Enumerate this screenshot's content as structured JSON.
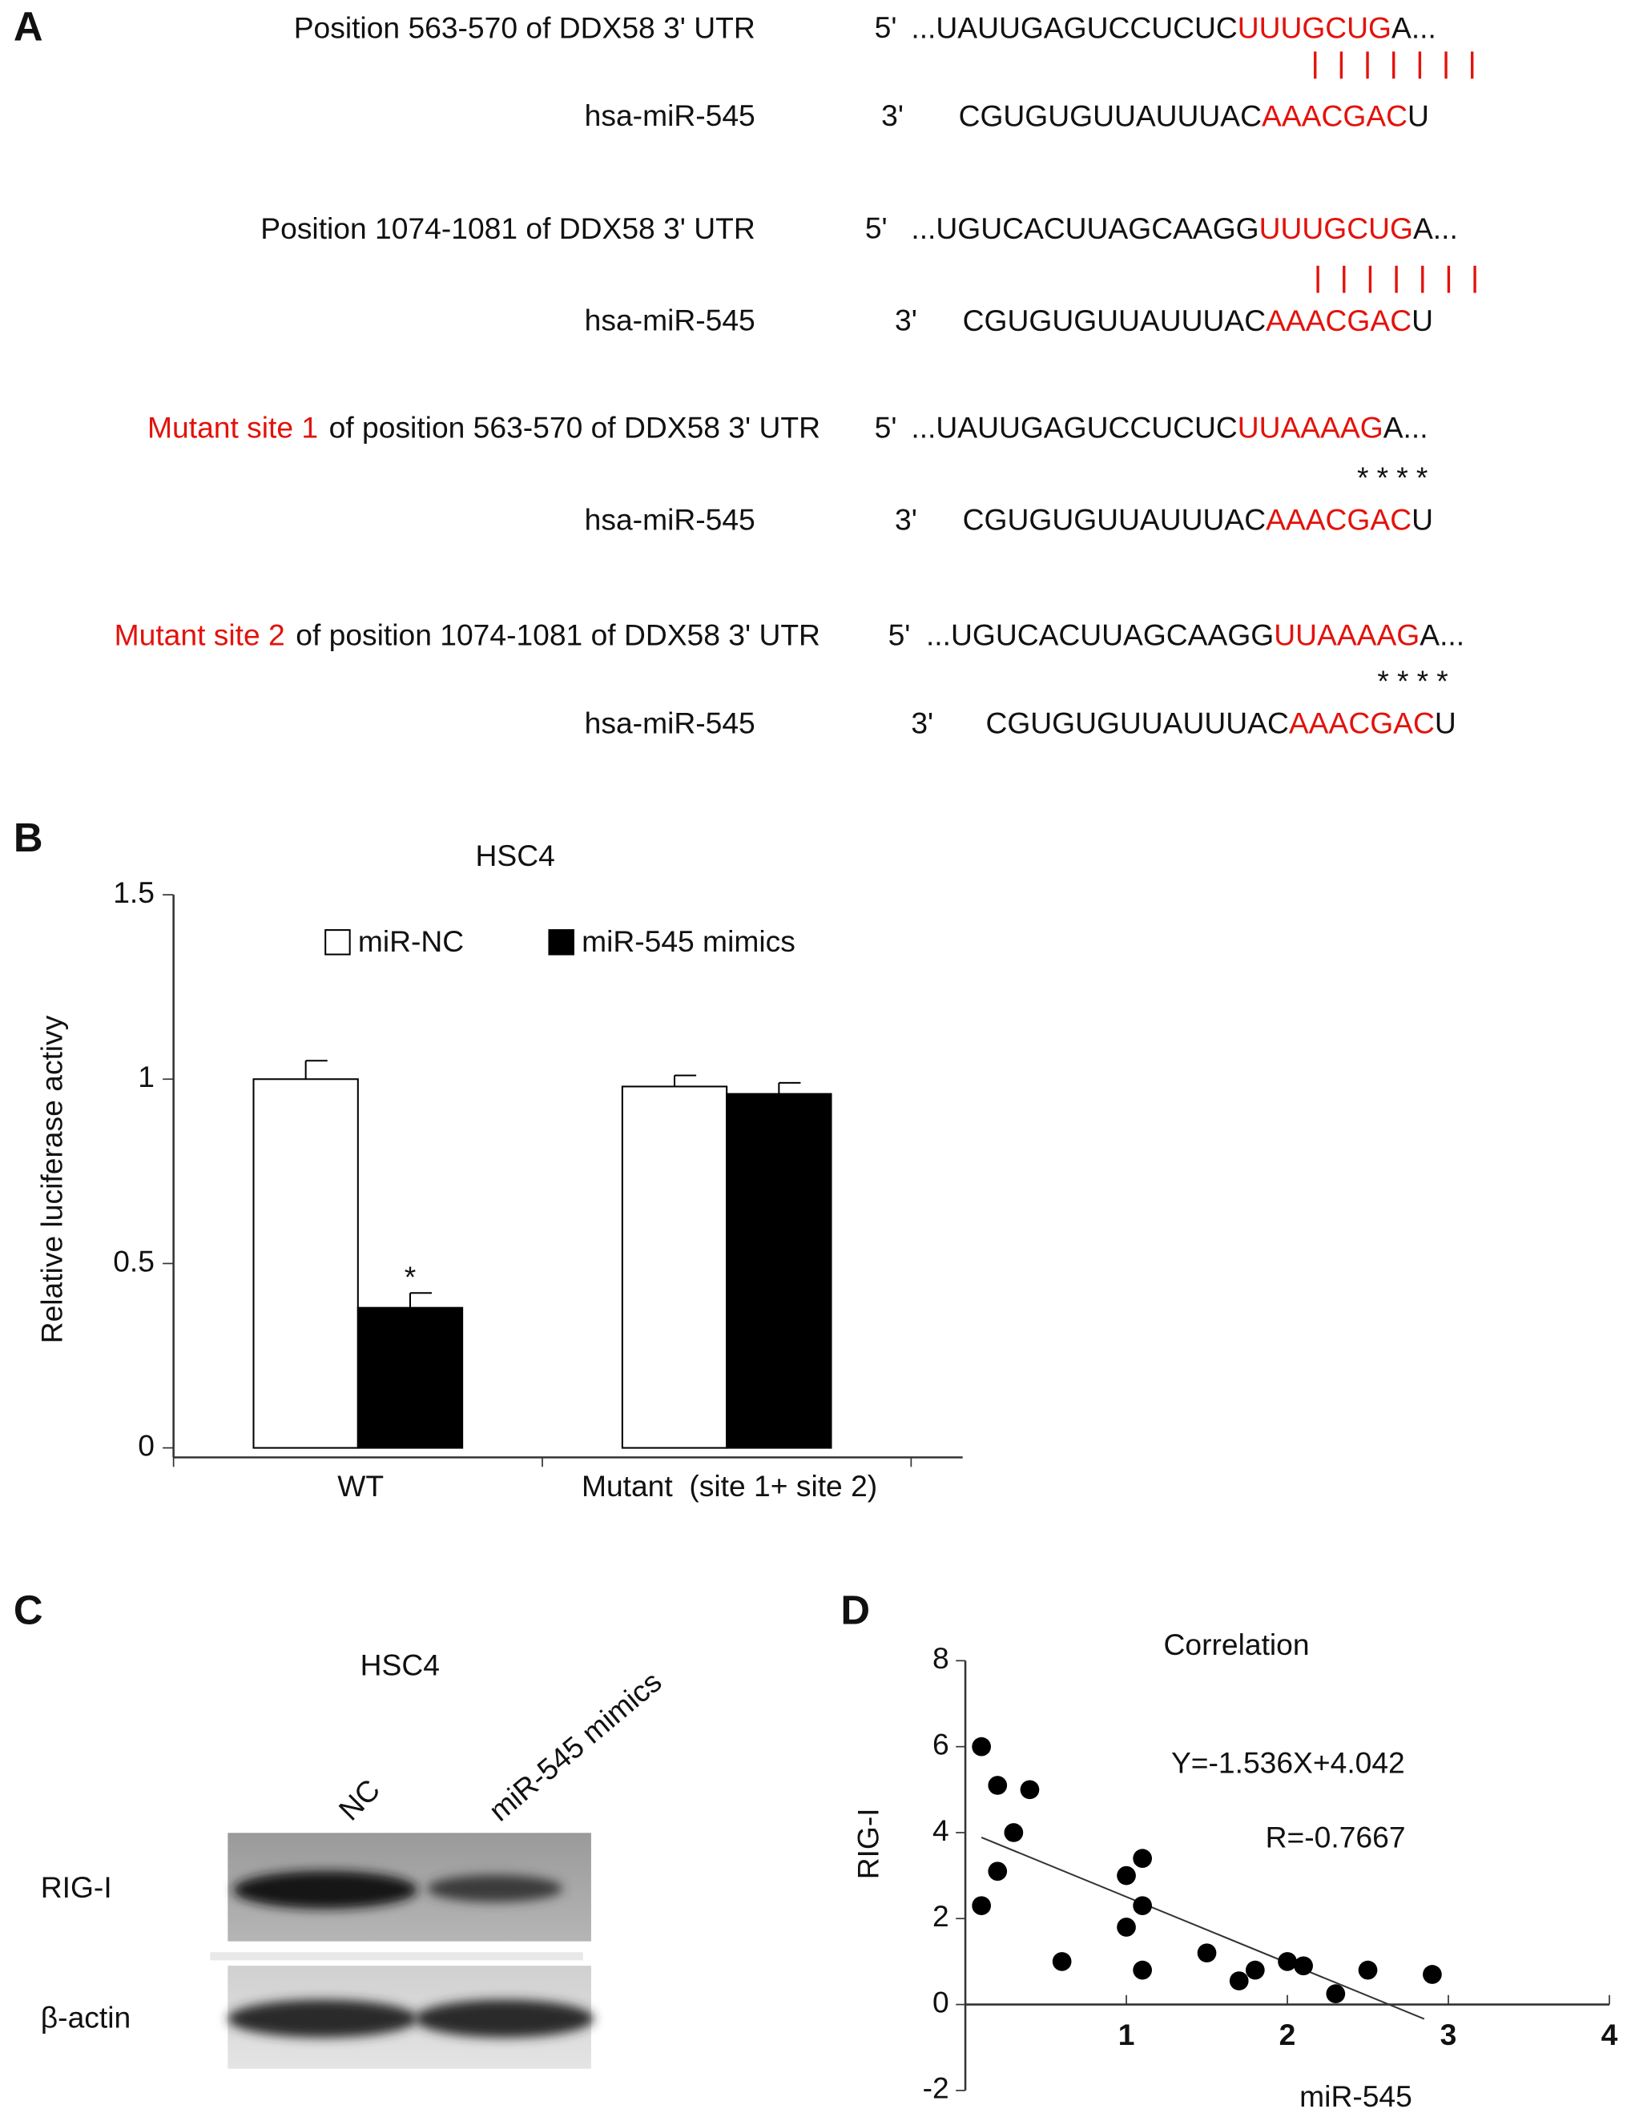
{
  "panel_a": {
    "label": "A",
    "alignments": [
      {
        "site_label": "Position 563-570 of DDX58 3' UTR",
        "utr_prime": "5'",
        "utr_seq": "...UAUUGAGUCCUCUC",
        "utr_site": "UUUGCUG",
        "utr_tail": "A...",
        "mirna_label": "hsa-miR-545",
        "mirna_prime": "3'",
        "mirna_seq": "CGUGUGUUAUUUAC",
        "mirna_site": "AAACGAC",
        "mirna_tail": "U"
      },
      {
        "site_label": "Position 1074-1081 of DDX58 3' UTR",
        "utr_prime": "5'",
        "utr_seq": "...UGUCACUUAGCAAGG",
        "utr_site": "UUUGCUG",
        "utr_tail": "A...",
        "mirna_label": "hsa-miR-545",
        "mirna_prime": "3'",
        "mirna_seq": "CGUGUGUUAUUUAC",
        "mirna_site": "AAACGAC",
        "mirna_tail": "U"
      },
      {
        "mutant_label": "Mutant site 1",
        "site_label": "of position 563-570 of DDX58 3' UTR",
        "utr_prime": "5'",
        "utr_seq": "...UAUUGAGUCCUCUC",
        "utr_site": "UUAAAAG",
        "utr_tail": "A...",
        "mismatch": "****",
        "mirna_label": "hsa-miR-545",
        "mirna_prime": "3'",
        "mirna_seq": "CGUGUGUUAUUUAC",
        "mirna_site": "AAACGAC",
        "mirna_tail": "U"
      },
      {
        "mutant_label": "Mutant site 2",
        "site_label": "of position 1074-1081 of DDX58 3' UTR",
        "utr_prime": "5'",
        "utr_seq": "...UGUCACUUAGCAAGG",
        "utr_site": "UUAAAAG",
        "utr_tail": "A...",
        "mismatch": "****",
        "mirna_label": "hsa-miR-545",
        "mirna_prime": "3'",
        "mirna_seq": "CGUGUGUUAUUUAC",
        "mirna_site": "AAACGAC",
        "mirna_tail": "U"
      }
    ]
  },
  "chart_data": [
    {
      "type": "bar",
      "panel_label": "B",
      "title": "HSC4",
      "y_label": "Relative luciferase activy",
      "categories": [
        "WT",
        "Mutant  (site 1+ site 2)"
      ],
      "series": [
        {
          "name": "miR-NC",
          "color": "#ffffff",
          "values": [
            1.0,
            0.98
          ],
          "errors": [
            0.05,
            0.03
          ]
        },
        {
          "name": "miR-545 mimics",
          "color": "#000000",
          "values": [
            0.38,
            0.96
          ],
          "errors": [
            0.04,
            0.03
          ],
          "markers": [
            "*",
            null
          ]
        }
      ],
      "ylim": [
        0,
        1.5
      ],
      "yticks": [
        0,
        0.5,
        1,
        1.5
      ]
    },
    {
      "type": "scatter",
      "panel_label": "D",
      "title": "Correlation",
      "x_label": "miR-545",
      "y_label": "RIG-I",
      "x": [
        0.1,
        0.2,
        0.4,
        0.3,
        0.2,
        0.1,
        0.6,
        1.0,
        1.1,
        1.1,
        1.0,
        1.1,
        1.5,
        1.7,
        1.8,
        2.0,
        2.1,
        2.3,
        2.5,
        2.9
      ],
      "values": [
        6,
        5.1,
        5.0,
        4.0,
        3.1,
        2.3,
        1.0,
        3.0,
        3.4,
        2.3,
        1.8,
        0.8,
        1.2,
        0.55,
        0.8,
        1.0,
        0.9,
        0.25,
        0.8,
        0.7
      ],
      "color": "#000000",
      "xlim": [
        0,
        4
      ],
      "xticks": [
        1,
        2,
        3,
        4
      ],
      "ylim": [
        -2,
        8
      ],
      "yticks": [
        -2,
        0,
        2,
        4,
        6,
        8
      ],
      "trendline": {
        "equation": "Y=-1.536X+4.042",
        "slope": -1.536,
        "intercept": 4.042,
        "x_range": [
          0.1,
          2.85
        ]
      },
      "r_label": "R=-0.7667"
    }
  ],
  "panel_c": {
    "label": "C",
    "title": "HSC4",
    "lanes": [
      "NC",
      "miR-545 mimics"
    ],
    "rows": [
      "RIG-I",
      "β-actin"
    ]
  }
}
